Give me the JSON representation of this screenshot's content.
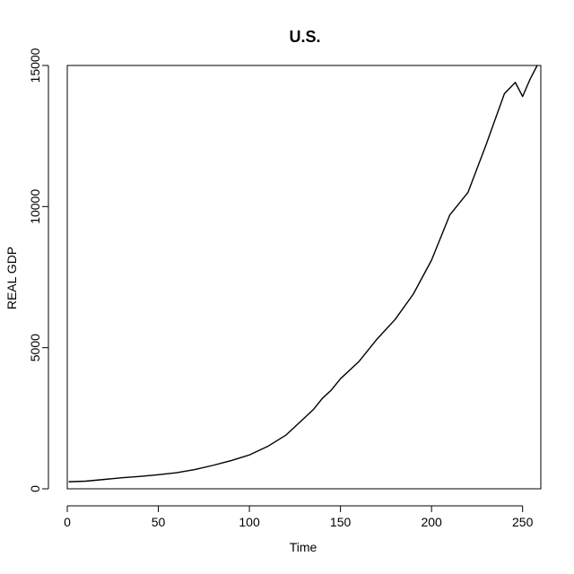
{
  "chart_data": {
    "type": "line",
    "title": "U.S.",
    "xlabel": "Time",
    "ylabel": "REAL GDP",
    "xlim": [
      0,
      260
    ],
    "ylim": [
      0,
      15000
    ],
    "x_ticks": [
      0,
      50,
      100,
      150,
      200,
      250
    ],
    "y_ticks": [
      0,
      5000,
      10000,
      15000
    ],
    "x_tick_labels": [
      "0",
      "50",
      "100",
      "150",
      "200",
      "250"
    ],
    "y_tick_labels": [
      "0",
      "5000",
      "10000",
      "15000"
    ],
    "grid": false,
    "legend": "none",
    "line_color": "#000000",
    "series": [
      {
        "x": [
          1,
          10,
          20,
          30,
          40,
          50,
          60,
          70,
          80,
          90,
          100,
          110,
          120,
          130,
          135,
          140,
          145,
          150,
          160,
          170,
          180,
          190,
          200,
          210,
          220,
          230,
          240,
          246,
          250,
          254,
          258
        ],
        "values": [
          250,
          270,
          330,
          390,
          440,
          500,
          570,
          680,
          830,
          1000,
          1200,
          1500,
          1900,
          2500,
          2800,
          3200,
          3500,
          3900,
          4500,
          5300,
          6000,
          6900,
          8100,
          9700,
          10500,
          12200,
          14000,
          14400,
          13900,
          14500,
          15000
        ]
      }
    ]
  }
}
